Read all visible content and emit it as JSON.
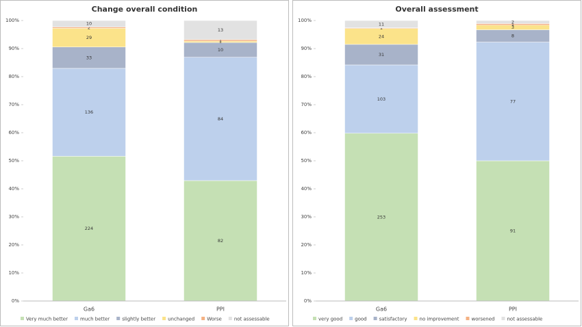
{
  "chart_data": [
    {
      "type": "bar",
      "stacking": "percent",
      "title": "Change overall condition",
      "categories": [
        "Ga6",
        "PPI"
      ],
      "series": [
        {
          "name": "Very much better",
          "color": "#c5e0b4",
          "values": [
            224,
            82
          ]
        },
        {
          "name": "much better",
          "color": "#bdd0ec",
          "values": [
            136,
            84
          ]
        },
        {
          "name": "slightly better",
          "color": "#a8b3c9",
          "values": [
            33,
            10
          ]
        },
        {
          "name": "unchanged",
          "color": "#fbe38a",
          "values": [
            29,
            1
          ]
        },
        {
          "name": "Worse",
          "color": "#f4b183",
          "values": [
            2,
            1
          ]
        },
        {
          "name": "not assessable",
          "color": "#e2e2e2",
          "values": [
            10,
            13
          ]
        }
      ],
      "ylim": [
        0,
        100
      ],
      "yticks": [
        {
          "value": 0,
          "label": "0%"
        },
        {
          "value": 10,
          "label": "10%"
        },
        {
          "value": 20,
          "label": "20%"
        },
        {
          "value": 30,
          "label": "30%"
        },
        {
          "value": 40,
          "label": "40%"
        },
        {
          "value": 50,
          "label": "50%"
        },
        {
          "value": 60,
          "label": "60%"
        },
        {
          "value": 70,
          "label": "70%"
        },
        {
          "value": 80,
          "label": "80%"
        },
        {
          "value": 90,
          "label": "90%"
        },
        {
          "value": 100,
          "label": "100%"
        }
      ],
      "legend": "bottom"
    },
    {
      "type": "bar",
      "stacking": "percent",
      "title": "Overall assessment",
      "categories": [
        "Ga6",
        "PPI"
      ],
      "series": [
        {
          "name": "very good",
          "color": "#c5e0b4",
          "values": [
            253,
            91
          ]
        },
        {
          "name": "good",
          "color": "#bdd0ec",
          "values": [
            103,
            77
          ]
        },
        {
          "name": "satisfactory",
          "color": "#a8b3c9",
          "values": [
            31,
            8
          ]
        },
        {
          "name": "no improvement",
          "color": "#fbe38a",
          "values": [
            24,
            3
          ]
        },
        {
          "name": "worsened",
          "color": "#f4b183",
          "values": [
            1,
            1
          ]
        },
        {
          "name": "not assessable",
          "color": "#e2e2e2",
          "values": [
            11,
            2
          ]
        }
      ],
      "ylim": [
        0,
        100
      ],
      "yticks": [
        {
          "value": 0,
          "label": "0%"
        },
        {
          "value": 10,
          "label": "10%"
        },
        {
          "value": 20,
          "label": "20%"
        },
        {
          "value": 30,
          "label": "30%"
        },
        {
          "value": 40,
          "label": "40%"
        },
        {
          "value": 50,
          "label": "50%"
        },
        {
          "value": 60,
          "label": "60%"
        },
        {
          "value": 70,
          "label": "70%"
        },
        {
          "value": 80,
          "label": "80%"
        },
        {
          "value": 90,
          "label": "90%"
        },
        {
          "value": 100,
          "label": "100%"
        }
      ],
      "legend": "bottom"
    }
  ]
}
